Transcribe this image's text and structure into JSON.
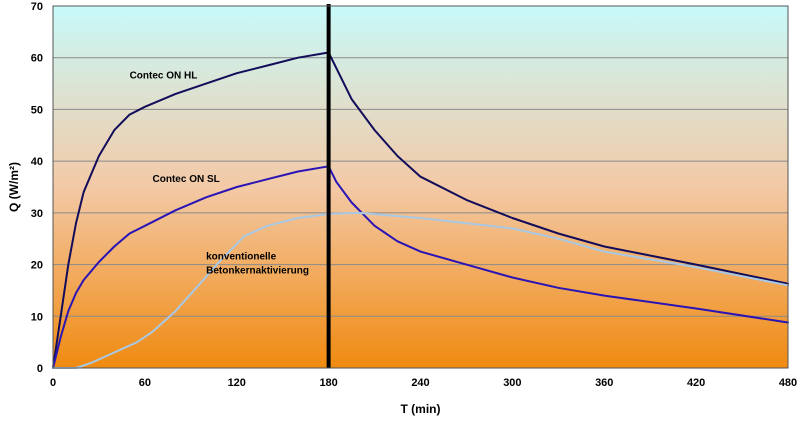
{
  "chart_data": {
    "type": "line",
    "title": "",
    "xlabel": "T (min)",
    "ylabel": "Q (W/m²)",
    "xlim": [
      0,
      480
    ],
    "ylim": [
      0,
      70
    ],
    "x_ticks": [
      0,
      60,
      120,
      180,
      240,
      300,
      360,
      420,
      480
    ],
    "y_ticks": [
      0,
      10,
      20,
      30,
      40,
      50,
      60,
      70
    ],
    "grid": "horizontal",
    "legend": "none",
    "background_gradient": [
      "#c8fafa",
      "#f08a10"
    ],
    "vertical_marker": {
      "x": 180,
      "color": "#000000"
    },
    "series": [
      {
        "name": "Contec ON HL",
        "color": "#120c5a",
        "points": [
          [
            0,
            0
          ],
          [
            5,
            10
          ],
          [
            10,
            20
          ],
          [
            15,
            28
          ],
          [
            20,
            34
          ],
          [
            30,
            41
          ],
          [
            40,
            46
          ],
          [
            50,
            49
          ],
          [
            60,
            50.5
          ],
          [
            80,
            53
          ],
          [
            100,
            55
          ],
          [
            120,
            57
          ],
          [
            140,
            58.5
          ],
          [
            160,
            60
          ],
          [
            180,
            61
          ],
          [
            185,
            58
          ],
          [
            195,
            52
          ],
          [
            210,
            46
          ],
          [
            225,
            41
          ],
          [
            240,
            37
          ],
          [
            270,
            32.5
          ],
          [
            300,
            29
          ],
          [
            330,
            26
          ],
          [
            360,
            23.5
          ],
          [
            420,
            20
          ],
          [
            480,
            16.3
          ]
        ]
      },
      {
        "name": "Contec ON SL",
        "color": "#2a14b4",
        "points": [
          [
            0,
            0
          ],
          [
            5,
            6
          ],
          [
            10,
            11
          ],
          [
            15,
            14.5
          ],
          [
            20,
            17
          ],
          [
            30,
            20.5
          ],
          [
            40,
            23.5
          ],
          [
            50,
            26
          ],
          [
            60,
            27.5
          ],
          [
            80,
            30.5
          ],
          [
            100,
            33
          ],
          [
            120,
            35
          ],
          [
            140,
            36.5
          ],
          [
            160,
            38
          ],
          [
            180,
            39
          ],
          [
            185,
            36
          ],
          [
            195,
            32
          ],
          [
            210,
            27.5
          ],
          [
            225,
            24.5
          ],
          [
            240,
            22.5
          ],
          [
            270,
            20
          ],
          [
            300,
            17.5
          ],
          [
            330,
            15.5
          ],
          [
            360,
            14
          ],
          [
            420,
            11.5
          ],
          [
            480,
            8.8
          ]
        ]
      },
      {
        "name": "konventionelle Betonkernaktivierung",
        "color": "#a9c8e3",
        "points": [
          [
            0,
            0
          ],
          [
            15,
            0
          ],
          [
            25,
            1
          ],
          [
            40,
            3
          ],
          [
            55,
            5
          ],
          [
            65,
            7
          ],
          [
            80,
            11
          ],
          [
            95,
            16
          ],
          [
            110,
            21
          ],
          [
            125,
            25.5
          ],
          [
            140,
            27.5
          ],
          [
            160,
            29
          ],
          [
            180,
            29.8
          ],
          [
            200,
            30
          ],
          [
            240,
            29
          ],
          [
            270,
            28
          ],
          [
            300,
            27
          ],
          [
            330,
            25
          ],
          [
            360,
            22.5
          ],
          [
            420,
            19.5
          ],
          [
            480,
            16
          ]
        ]
      }
    ],
    "annotations": [
      {
        "text": "Contec ON HL",
        "x": 50,
        "y": 56,
        "lines": [
          "Contec ON HL"
        ]
      },
      {
        "text": "Contec ON SL",
        "x": 65,
        "y": 36,
        "lines": [
          "Contec ON SL"
        ]
      },
      {
        "text": "konventionelle Betonkernaktivierung",
        "x": 100,
        "y": 21,
        "lines": [
          "konventionelle",
          "Betonkernaktivierung"
        ]
      }
    ]
  }
}
